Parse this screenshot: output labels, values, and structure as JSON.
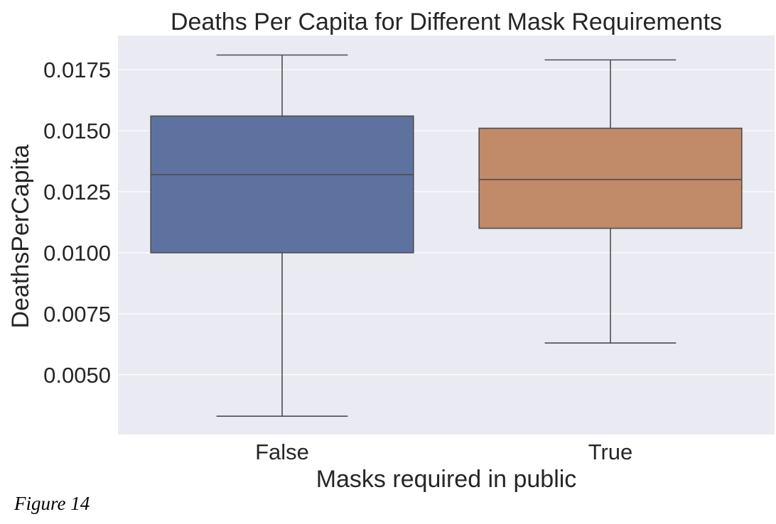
{
  "chart_data": {
    "type": "box",
    "title": "Deaths Per Capita for Different Mask Requirements",
    "xlabel": "Masks required in public",
    "ylabel": "DeathsPerCapita",
    "categories": [
      "False",
      "True"
    ],
    "boxes": [
      {
        "category": "False",
        "whisker_low": 0.0033,
        "q1": 0.01,
        "median": 0.0132,
        "q3": 0.0156,
        "whisker_high": 0.0181,
        "color": "#5e72a0"
      },
      {
        "category": "True",
        "whisker_low": 0.0063,
        "q1": 0.011,
        "median": 0.013,
        "q3": 0.0151,
        "whisker_high": 0.0179,
        "color": "#c18a69"
      }
    ],
    "yticks": [
      0.005,
      0.0075,
      0.01,
      0.0125,
      0.015,
      0.0175
    ],
    "ytick_labels": [
      "0.0050",
      "0.0075",
      "0.0100",
      "0.0125",
      "0.0150",
      "0.0175"
    ],
    "ylim": [
      0.00255,
      0.0189
    ],
    "grid": true,
    "background": "#eaeaf2",
    "line_color": "#4d4d4d"
  },
  "figure_caption": "Figure 14"
}
